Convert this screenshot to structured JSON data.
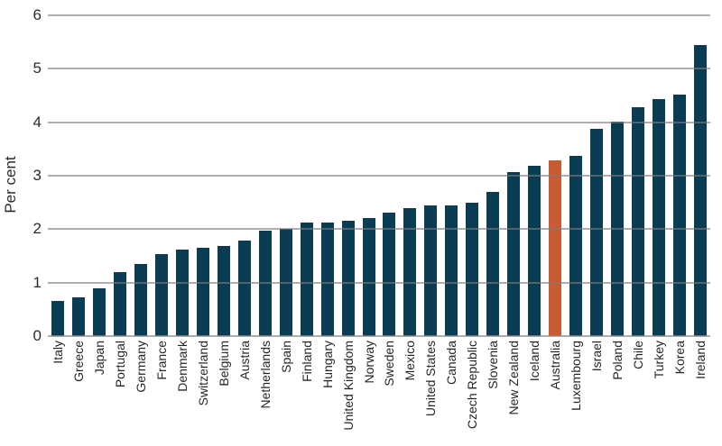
{
  "chart_data": {
    "type": "bar",
    "title": "",
    "ylabel": "Per cent",
    "xlabel": "",
    "ylim": [
      0,
      6
    ],
    "y_ticks": [
      "0",
      "1",
      "2",
      "3",
      "4",
      "5",
      "6"
    ],
    "grid": true,
    "legend": false,
    "bar_color": "#0a3c54",
    "highlight_color": "#c95b32",
    "highlight_category": "Australia",
    "categories": [
      "Italy",
      "Greece",
      "Japan",
      "Portugal",
      "Germany",
      "France",
      "Denmark",
      "Switzerland",
      "Belgium",
      "Austria",
      "Netherlands",
      "Spain",
      "Finland",
      "Hungary",
      "United Kingdom",
      "Norway",
      "Sweden",
      "Mexico",
      "United States",
      "Canada",
      "Czech Republic",
      "Slovenia",
      "New Zealand",
      "Iceland",
      "Australia",
      "Luxembourg",
      "Israel",
      "Poland",
      "Chile",
      "Turkey",
      "Korea",
      "Ireland"
    ],
    "values": [
      0.65,
      0.73,
      0.89,
      1.2,
      1.35,
      1.54,
      1.62,
      1.65,
      1.68,
      1.78,
      1.97,
      2.0,
      2.12,
      2.12,
      2.15,
      2.21,
      2.31,
      2.39,
      2.44,
      2.44,
      2.5,
      2.7,
      3.07,
      3.19,
      3.28,
      3.37,
      3.88,
      4.01,
      4.28,
      4.44,
      4.51,
      5.45
    ]
  }
}
